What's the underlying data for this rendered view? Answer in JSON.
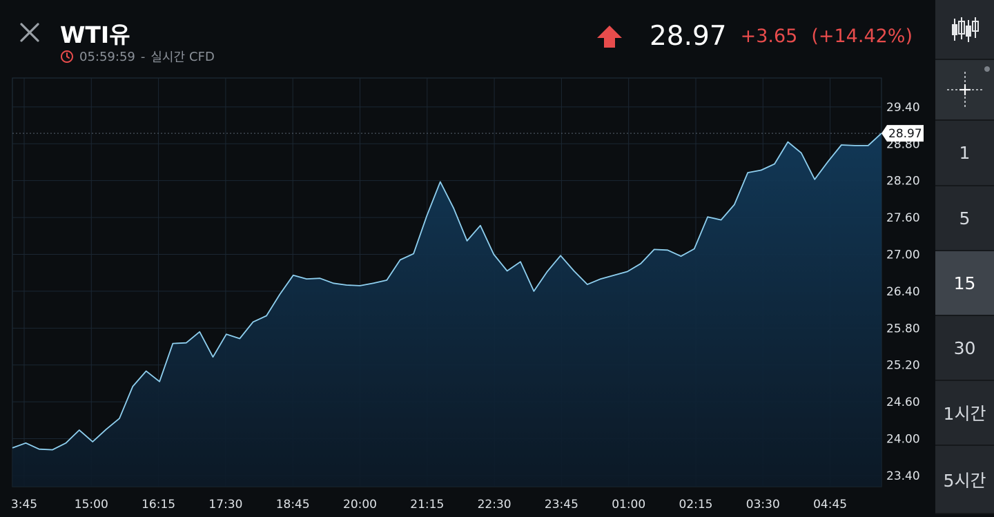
{
  "header": {
    "title": "WTI유",
    "time": "05:59:59",
    "separator": "-",
    "mode": "실시간",
    "type": "CFD",
    "price": "28.97",
    "change": "+3.65",
    "change_pct": "(+14.42%)"
  },
  "colors": {
    "up": "#e84c4c",
    "line": "#8fd0f0",
    "background": "#0b0e11",
    "sidebar": "#24282d",
    "active": "#3e444b"
  },
  "icons": {
    "close": "close-icon",
    "clock": "clock-icon",
    "direction": "arrow-up-icon",
    "chart_type": "candlestick-icon",
    "crosshair": "crosshair-icon"
  },
  "sidebar": {
    "intervals": [
      "1",
      "5",
      "15",
      "30",
      "1시간",
      "5시간"
    ],
    "active_interval": "15"
  },
  "chart_data": {
    "type": "area",
    "title": "",
    "xlabel": "",
    "ylabel": "",
    "x_ticks": [
      "3:45",
      "15:00",
      "16:15",
      "17:30",
      "18:45",
      "20:00",
      "21:15",
      "22:30",
      "23:45",
      "01:00",
      "02:15",
      "03:30",
      "04:45"
    ],
    "y_ticks": [
      "29.40",
      "28.80",
      "28.20",
      "27.60",
      "27.00",
      "26.40",
      "25.80",
      "25.20",
      "24.60",
      "24.00",
      "23.40"
    ],
    "ylim": [
      23.22,
      29.87
    ],
    "last_price_label": "28.97",
    "grid": true,
    "values": [
      23.85,
      23.93,
      23.83,
      23.82,
      23.93,
      24.14,
      23.95,
      24.15,
      24.33,
      24.85,
      25.1,
      24.93,
      25.55,
      25.56,
      25.74,
      25.33,
      25.7,
      25.63,
      25.9,
      26.0,
      26.35,
      26.66,
      26.6,
      26.61,
      26.53,
      26.5,
      26.49,
      26.53,
      26.58,
      26.91,
      27.01,
      27.63,
      28.18,
      27.75,
      27.22,
      27.47,
      27.0,
      26.73,
      26.88,
      26.4,
      26.72,
      26.98,
      26.73,
      26.51,
      26.6,
      26.66,
      26.72,
      26.85,
      27.08,
      27.07,
      26.97,
      27.09,
      27.61,
      27.56,
      27.81,
      28.33,
      28.37,
      28.47,
      28.83,
      28.65,
      28.22,
      28.51,
      28.78,
      28.77,
      28.77,
      28.97
    ]
  }
}
